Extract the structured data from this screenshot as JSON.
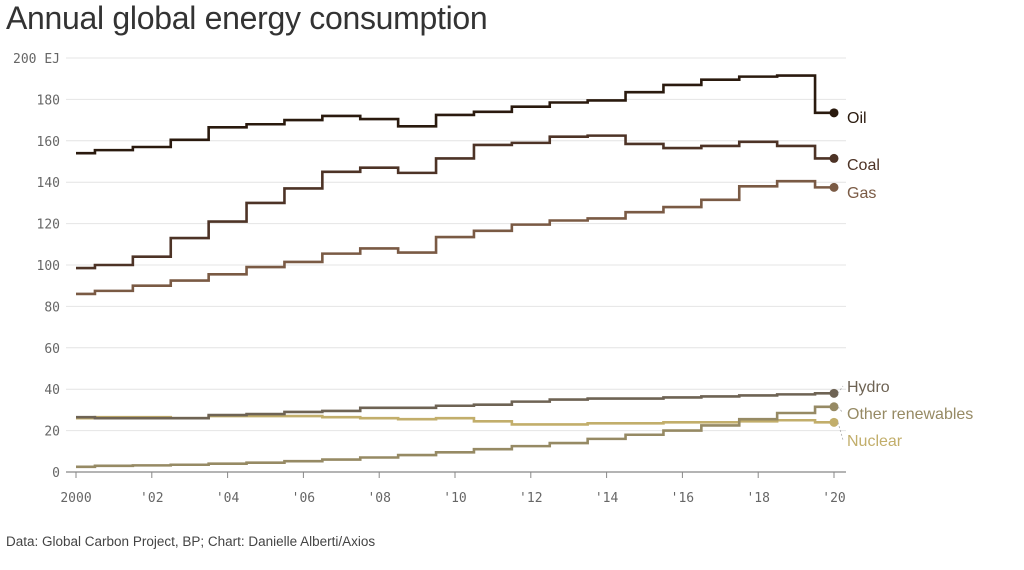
{
  "title": "Annual global energy consumption",
  "source": "Data: Global Carbon Project, BP; Chart: Danielle Alberti/Axios",
  "chart_data": {
    "type": "line",
    "step": true,
    "title": "Annual global energy consumption",
    "unit": "EJ",
    "x": [
      2000,
      2001,
      2002,
      2003,
      2004,
      2005,
      2006,
      2007,
      2008,
      2009,
      2010,
      2011,
      2012,
      2013,
      2014,
      2015,
      2016,
      2017,
      2018,
      2019,
      2020
    ],
    "xticks": [
      {
        "value": 2000,
        "label": "2000"
      },
      {
        "value": 2002,
        "label": "'02"
      },
      {
        "value": 2004,
        "label": "'04"
      },
      {
        "value": 2006,
        "label": "'06"
      },
      {
        "value": 2008,
        "label": "'08"
      },
      {
        "value": 2010,
        "label": "'10"
      },
      {
        "value": 2012,
        "label": "'12"
      },
      {
        "value": 2014,
        "label": "'14"
      },
      {
        "value": 2016,
        "label": "'16"
      },
      {
        "value": 2018,
        "label": "'18"
      },
      {
        "value": 2020,
        "label": "'20"
      }
    ],
    "yticks": [
      {
        "value": 0,
        "label": "0"
      },
      {
        "value": 20,
        "label": "20"
      },
      {
        "value": 40,
        "label": "40"
      },
      {
        "value": 60,
        "label": "60"
      },
      {
        "value": 80,
        "label": "80"
      },
      {
        "value": 100,
        "label": "100"
      },
      {
        "value": 120,
        "label": "120"
      },
      {
        "value": 140,
        "label": "140"
      },
      {
        "value": 160,
        "label": "160"
      },
      {
        "value": 180,
        "label": "180"
      },
      {
        "value": 200,
        "label": "200 EJ"
      }
    ],
    "ylim": [
      0,
      200
    ],
    "xlim": [
      2000,
      2020
    ],
    "grid": true,
    "series": [
      {
        "name": "Oil",
        "color": "#2a1a0e",
        "values": [
          154,
          155.5,
          157,
          160.5,
          166.5,
          168,
          170,
          172,
          170.5,
          167,
          172.5,
          174,
          176.5,
          178.5,
          179.5,
          183.5,
          187,
          189.5,
          191,
          191.5,
          173.5
        ]
      },
      {
        "name": "Coal",
        "color": "#4d3326",
        "values": [
          98.5,
          100,
          104,
          113,
          121,
          130,
          137,
          145,
          147,
          144.5,
          151.5,
          158,
          159,
          162,
          162.5,
          158.5,
          156.5,
          157.5,
          159.5,
          157.5,
          151.5
        ]
      },
      {
        "name": "Gas",
        "color": "#7a5a44",
        "values": [
          86,
          87.5,
          90,
          92.5,
          95.5,
          99,
          101.5,
          105.5,
          108,
          106,
          113.5,
          116.5,
          119.5,
          121.5,
          122.5,
          125.5,
          128,
          131.5,
          138,
          140.5,
          137.5
        ]
      },
      {
        "name": "Hydro",
        "color": "#6e6354",
        "values": [
          26.5,
          26,
          26,
          26,
          27.5,
          28,
          29,
          29.5,
          31,
          31,
          32,
          32.5,
          34,
          35,
          35.5,
          35.5,
          36,
          36.5,
          37,
          37.5,
          38
        ]
      },
      {
        "name": "Other renewables",
        "color": "#968a64",
        "values": [
          2.5,
          3,
          3.2,
          3.5,
          4,
          4.5,
          5.2,
          6,
          7,
          8.2,
          9.5,
          11,
          12.5,
          14,
          16,
          18,
          20,
          22.5,
          25.5,
          28.5,
          31.5
        ]
      },
      {
        "name": "Nuclear",
        "color": "#c2ae6b",
        "values": [
          26,
          26.5,
          26.5,
          26,
          27,
          27,
          27,
          26.5,
          26,
          25.5,
          26,
          24.5,
          23,
          23,
          23.5,
          23.5,
          24,
          24,
          24.5,
          25,
          24
        ]
      }
    ]
  }
}
